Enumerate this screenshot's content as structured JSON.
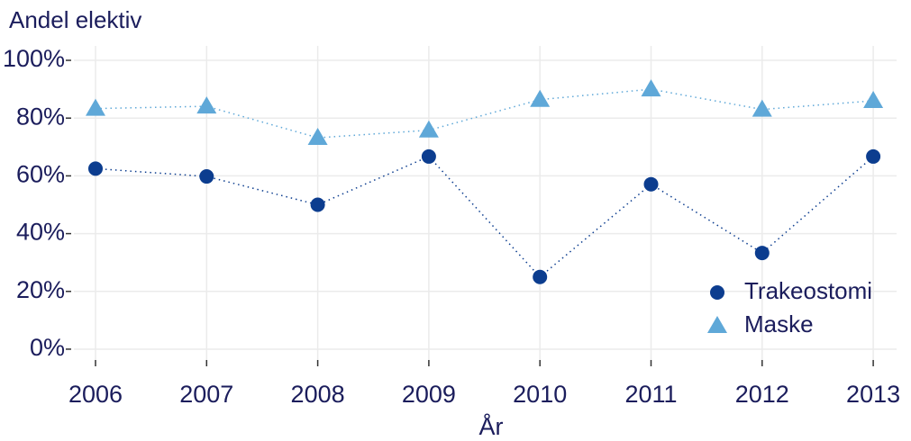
{
  "chart_data": {
    "type": "line",
    "title": "Andel elektiv",
    "x_label": "År",
    "categories": [
      "2006",
      "2007",
      "2008",
      "2009",
      "2010",
      "2011",
      "2012",
      "2013"
    ],
    "series": [
      {
        "name": "Trakeostomi",
        "color": "#0c3d8f",
        "marker": "circle",
        "values": [
          62.5,
          59.8,
          50,
          66.7,
          25,
          57.1,
          33.3,
          66.7
        ]
      },
      {
        "name": "Maske",
        "color": "#5fa8d8",
        "marker": "triangle",
        "values": [
          83.3,
          84.1,
          73.2,
          75.8,
          86.4,
          90,
          83,
          86
        ]
      }
    ],
    "ylim": [
      -5,
      105
    ],
    "yticks": [
      {
        "value": 0,
        "label": "0%"
      },
      {
        "value": 20,
        "label": "20%"
      },
      {
        "value": 40,
        "label": "40%"
      },
      {
        "value": 60,
        "label": "60%"
      },
      {
        "value": 80,
        "label": "80%"
      },
      {
        "value": 100,
        "label": "100%"
      }
    ],
    "grid": true,
    "legend": "bottom-right"
  }
}
